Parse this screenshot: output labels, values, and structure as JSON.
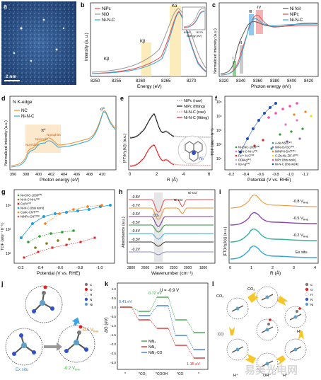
{
  "panels": {
    "a": {
      "letter": "a",
      "scale": "2 nm"
    },
    "b": {
      "letter": "b",
      "legend": [
        "NiPc",
        "NiO",
        "Ni-N-C"
      ],
      "colors": [
        "#e8474c",
        "#9a9a9a",
        "#2fa8d8"
      ],
      "ylabel": "Intensity (a. u.)",
      "xlabel": "Energy (eV)",
      "xticks": [
        "8250",
        "8255",
        "8260",
        "8265",
        "8270"
      ],
      "labels": [
        "Kβ",
        "Kβ",
        "Kα",
        "Kα"
      ],
      "inset_ticks": [
        "8260",
        "8270"
      ],
      "inset_xlabel": "Energy (eV)"
    },
    "c": {
      "letter": "c",
      "legend": [
        "Ni foil",
        "NiPc",
        "Ni-N-C"
      ],
      "colors": [
        "#555555",
        "#e8474c",
        "#2fa8d8"
      ],
      "ylabel": "Normalized intensity (a.u.)",
      "xlabel": "Photon energy (eV)",
      "xticks": [
        "8320",
        "8340",
        "8360",
        "8380",
        "8400",
        "8420"
      ],
      "region_labels": [
        "I",
        "II",
        "III",
        "IV"
      ]
    },
    "d": {
      "letter": "d",
      "title": "N K-edge",
      "legend": [
        "NC",
        "Ni-N-C"
      ],
      "colors": [
        "#f0902a",
        "#2fa8d8"
      ],
      "ylabel": "Normalized intensity (a.u.)",
      "xlabel": "Photon energy (eV)",
      "xticks": [
        "396",
        "398",
        "400",
        "402",
        "404",
        "406",
        "408",
        "410"
      ],
      "peaks": [
        "σ*",
        "π*",
        "Npyridinic",
        "Npyrrolic",
        "Ngraphitic"
      ]
    },
    "e": {
      "letter": "e",
      "legend": [
        "NiPc (raw)",
        "NiPc (fitting)",
        "Ni-N-C (raw)",
        "Ni-N-C (fitting)"
      ],
      "colors": [
        "#aaaaaa",
        "#111111",
        "#f0a0a0",
        "#d62020"
      ],
      "ylabel": "|FT(k³χ(k))| (a.u.)",
      "xlabel": "R (Å)",
      "xticks": [
        "0",
        "2",
        "4",
        "6"
      ],
      "atom": "Ni"
    },
    "f": {
      "letter": "f",
      "ylabel": "TOF (site⁻¹ h⁻¹)",
      "xlabel": "Potential (V vs. RHE)",
      "xticks": [
        "-0.2",
        "-0.4",
        "-0.6",
        "-0.8",
        "-1.0",
        "-1.2"
      ],
      "yticks": [
        "10⁵",
        "10⁴",
        "10³",
        "10²",
        "10¹"
      ],
      "legend": [
        "Ni-CNC-1000",
        "Ni-N-C-NH₃",
        "Fe³⁺-N-C",
        "OD-Ag",
        "np-Ag",
        "A-Ni-NSG",
        "NiFe-DASC",
        "Ni/NPH-DAT",
        "C-Zn₁Ni₄ ZIF-8",
        "NiPc (this work)",
        "Ni-N-C (this work)"
      ],
      "legend_sup": [
        "[28]",
        "[29]",
        "[30]",
        "[31]",
        "[32]",
        "[33]",
        "[34]",
        "[35]",
        "[36]",
        "",
        ""
      ],
      "colors": [
        "#2ca02c",
        "#e377c2",
        "#d62728",
        "#bbbbbb",
        "#c5a3d9",
        "#1f9e89",
        "#9467bd",
        "#ff7f0e",
        "#e6e600",
        "#ff4da6",
        "#1f4eb4"
      ]
    },
    "g": {
      "letter": "g",
      "ylabel": "TOF (site⁻¹ h⁻¹)",
      "xlabel": "Potential (V vs. RHE)",
      "xticks": [
        "-0.2",
        "-0.4",
        "-0.6",
        "-0.8",
        "-1.0"
      ],
      "yticks": [
        "10⁴",
        "10³",
        "10²"
      ],
      "legend": [
        "Ni-CNC-1000",
        "Ni-N-C-NH₃",
        "CoPc",
        "Ni-N-C (this work)",
        "CoNc-CNT",
        "NiNPc-CNT"
      ],
      "legend_sup": [
        "[28]",
        "[29]",
        "[37]",
        "",
        "[38]",
        "[39]"
      ],
      "colors": [
        "#2ca02c",
        "#7d7d20",
        "#d62728",
        "#1f9ed8",
        "#ff7f0e",
        "#e05050"
      ]
    },
    "h": {
      "letter": "h",
      "ylabel": "Absorbance (a.u.)",
      "xlabel": "Wavenumber (cm⁻¹)",
      "xticks": [
        "2800",
        "2600",
        "2400",
        "2200",
        "2000",
        "1800"
      ],
      "labels": [
        "CO₂",
        "Ni-CO",
        "Ni-CO",
        "Ni-CO"
      ],
      "lines": [
        "-0.8V",
        "-0.7V",
        "-0.6V",
        "-0.5V",
        "-0.4V",
        "-0.3V",
        "-0.2V"
      ],
      "colors": [
        "#e8474c",
        "#f0902a",
        "#7d3c98",
        "#2f8f3f",
        "#2fa8d8",
        "#333333",
        "#8888cc"
      ]
    },
    "i": {
      "letter": "i",
      "ylabel": "|FT(k³χ(k))| (a.u.)",
      "xlabel": "R (Å)",
      "xticks": [
        "0",
        "1",
        "2",
        "3",
        "4"
      ],
      "labels": [
        "-0.8 V",
        "-0.5 V",
        "-0.2 V",
        "Ex situ"
      ],
      "label_sub": "RHE",
      "colors": [
        "#f0902a",
        "#8e44ad",
        "#2fb39a",
        "#2fa8d8"
      ]
    },
    "j": {
      "letter": "j",
      "labels": [
        "Ex situ",
        "-0.5 V",
        "-0.2 V"
      ],
      "label_sub": "RHE",
      "atoms": [
        "C",
        "O",
        "H",
        "N",
        "Ni"
      ],
      "atom_colors": [
        "#7a7a7a",
        "#e02020",
        "#ffffff",
        "#3050d0",
        "#5fa0c8"
      ]
    },
    "k": {
      "letter": "k",
      "ylabel": "ΔG (eV)",
      "yticks": [
        "1.0",
        "0.5",
        "0.0",
        "-0.5",
        "-1.0",
        "-1.5",
        "-2.0",
        "-2.5",
        "-3.0"
      ],
      "xcats": [
        "*",
        "*CO₂",
        "*COOH",
        "*CO",
        "*"
      ],
      "title": "U = -0.9 V",
      "energies": [
        "0.41 eV",
        "0.72 eV",
        "1.15 eV"
      ],
      "legend": [
        "NiN₄",
        "NiN₂",
        "NiN₂-CO"
      ],
      "colors": [
        "#2e9e3e",
        "#d62020",
        "#2f6fd0"
      ]
    },
    "l": {
      "letter": "l",
      "labels": [
        "CO₂",
        "CO₂",
        "H⁺",
        "H⁺",
        "H⁺",
        "CO",
        "OH⁻"
      ],
      "atoms": [
        "C",
        "O",
        "H",
        "N",
        "Ni"
      ],
      "atom_colors": [
        "#7a7a7a",
        "#e02020",
        "#ffffff",
        "#3050d0",
        "#5fa0c8"
      ]
    }
  },
  "watermark": "易美光电网"
}
